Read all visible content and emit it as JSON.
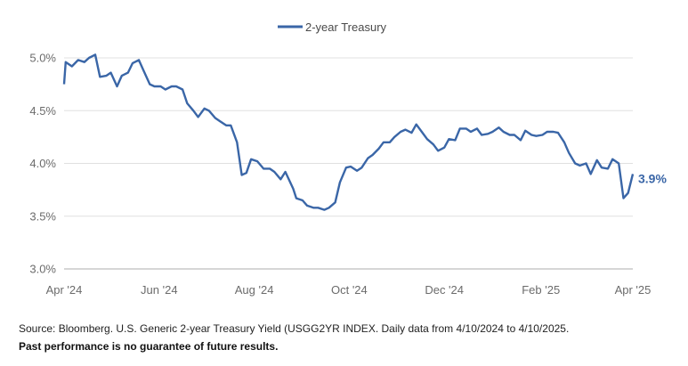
{
  "chart_data": {
    "type": "line",
    "title": "",
    "xlabel": "",
    "ylabel": "",
    "ylim": [
      3.0,
      5.0
    ],
    "grid": true,
    "legend_position": "top-center",
    "colors": {
      "series": "#3a66a7",
      "grid": "#e0e0e0",
      "axis": "#c8c8c8"
    },
    "y_ticks": [
      {
        "value": 5.0,
        "label": "5.0%"
      },
      {
        "value": 4.5,
        "label": "4.5%"
      },
      {
        "value": 4.0,
        "label": "4.0%"
      },
      {
        "value": 3.5,
        "label": "3.5%"
      },
      {
        "value": 3.0,
        "label": "3.0%"
      }
    ],
    "x_ticks": [
      {
        "date": "2024-04-10",
        "label": "Apr '24"
      },
      {
        "date": "2024-06-10",
        "label": "Jun '24"
      },
      {
        "date": "2024-08-10",
        "label": "Aug '24"
      },
      {
        "date": "2024-10-10",
        "label": "Oct '24"
      },
      {
        "date": "2024-12-10",
        "label": "Dec '24"
      },
      {
        "date": "2025-02-10",
        "label": "Feb '25"
      },
      {
        "date": "2025-04-10",
        "label": "Apr '25"
      }
    ],
    "end_label": "3.9%",
    "series": [
      {
        "name": "2-year Treasury",
        "x": [
          "2024-04-10",
          "2024-04-11",
          "2024-04-15",
          "2024-04-19",
          "2024-04-23",
          "2024-04-26",
          "2024-04-30",
          "2024-05-03",
          "2024-05-07",
          "2024-05-10",
          "2024-05-14",
          "2024-05-17",
          "2024-05-21",
          "2024-05-24",
          "2024-05-28",
          "2024-05-31",
          "2024-06-04",
          "2024-06-07",
          "2024-06-11",
          "2024-06-14",
          "2024-06-18",
          "2024-06-21",
          "2024-06-25",
          "2024-06-28",
          "2024-07-02",
          "2024-07-05",
          "2024-07-09",
          "2024-07-12",
          "2024-07-16",
          "2024-07-19",
          "2024-07-23",
          "2024-07-26",
          "2024-07-30",
          "2024-08-02",
          "2024-08-05",
          "2024-08-08",
          "2024-08-12",
          "2024-08-16",
          "2024-08-20",
          "2024-08-23",
          "2024-08-27",
          "2024-08-30",
          "2024-09-04",
          "2024-09-06",
          "2024-09-10",
          "2024-09-13",
          "2024-09-17",
          "2024-09-20",
          "2024-09-24",
          "2024-09-27",
          "2024-10-01",
          "2024-10-04",
          "2024-10-08",
          "2024-10-11",
          "2024-10-15",
          "2024-10-18",
          "2024-10-22",
          "2024-10-25",
          "2024-10-29",
          "2024-11-01",
          "2024-11-05",
          "2024-11-08",
          "2024-11-12",
          "2024-11-15",
          "2024-11-19",
          "2024-11-22",
          "2024-11-26",
          "2024-11-29",
          "2024-12-03",
          "2024-12-06",
          "2024-12-10",
          "2024-12-13",
          "2024-12-17",
          "2024-12-20",
          "2024-12-24",
          "2024-12-27",
          "2024-12-31",
          "2025-01-03",
          "2025-01-07",
          "2025-01-10",
          "2025-01-14",
          "2025-01-17",
          "2025-01-21",
          "2025-01-24",
          "2025-01-28",
          "2025-01-31",
          "2025-02-04",
          "2025-02-07",
          "2025-02-11",
          "2025-02-14",
          "2025-02-18",
          "2025-02-21",
          "2025-02-25",
          "2025-02-28",
          "2025-03-04",
          "2025-03-07",
          "2025-03-11",
          "2025-03-14",
          "2025-03-18",
          "2025-03-21",
          "2025-03-25",
          "2025-03-28",
          "2025-04-01",
          "2025-04-04",
          "2025-04-07",
          "2025-04-10"
        ],
        "values": [
          4.75,
          4.96,
          4.92,
          4.98,
          4.96,
          5.0,
          5.03,
          4.82,
          4.83,
          4.86,
          4.73,
          4.83,
          4.86,
          4.95,
          4.98,
          4.88,
          4.75,
          4.73,
          4.73,
          4.7,
          4.73,
          4.73,
          4.7,
          4.57,
          4.5,
          4.44,
          4.52,
          4.5,
          4.43,
          4.4,
          4.36,
          4.36,
          4.2,
          3.89,
          3.91,
          4.04,
          4.02,
          3.95,
          3.95,
          3.92,
          3.85,
          3.92,
          3.76,
          3.67,
          3.65,
          3.6,
          3.58,
          3.58,
          3.56,
          3.58,
          3.63,
          3.82,
          3.96,
          3.97,
          3.93,
          3.96,
          4.05,
          4.08,
          4.14,
          4.2,
          4.2,
          4.25,
          4.3,
          4.32,
          4.29,
          4.37,
          4.29,
          4.23,
          4.18,
          4.12,
          4.15,
          4.23,
          4.22,
          4.33,
          4.33,
          4.3,
          4.33,
          4.27,
          4.28,
          4.3,
          4.34,
          4.3,
          4.27,
          4.27,
          4.22,
          4.31,
          4.27,
          4.26,
          4.27,
          4.3,
          4.3,
          4.29,
          4.2,
          4.1,
          4.0,
          3.98,
          4.0,
          3.9,
          4.03,
          3.96,
          3.95,
          4.04,
          4.0,
          3.67,
          3.72,
          3.9
        ]
      }
    ]
  },
  "footer": {
    "source": "Source: Bloomberg. U.S. Generic 2-year Treasury Yield (USGG2YR INDEX. Daily data from 4/10/2024 to 4/10/2025.",
    "disclaimer": "Past performance is no guarantee of future results."
  }
}
